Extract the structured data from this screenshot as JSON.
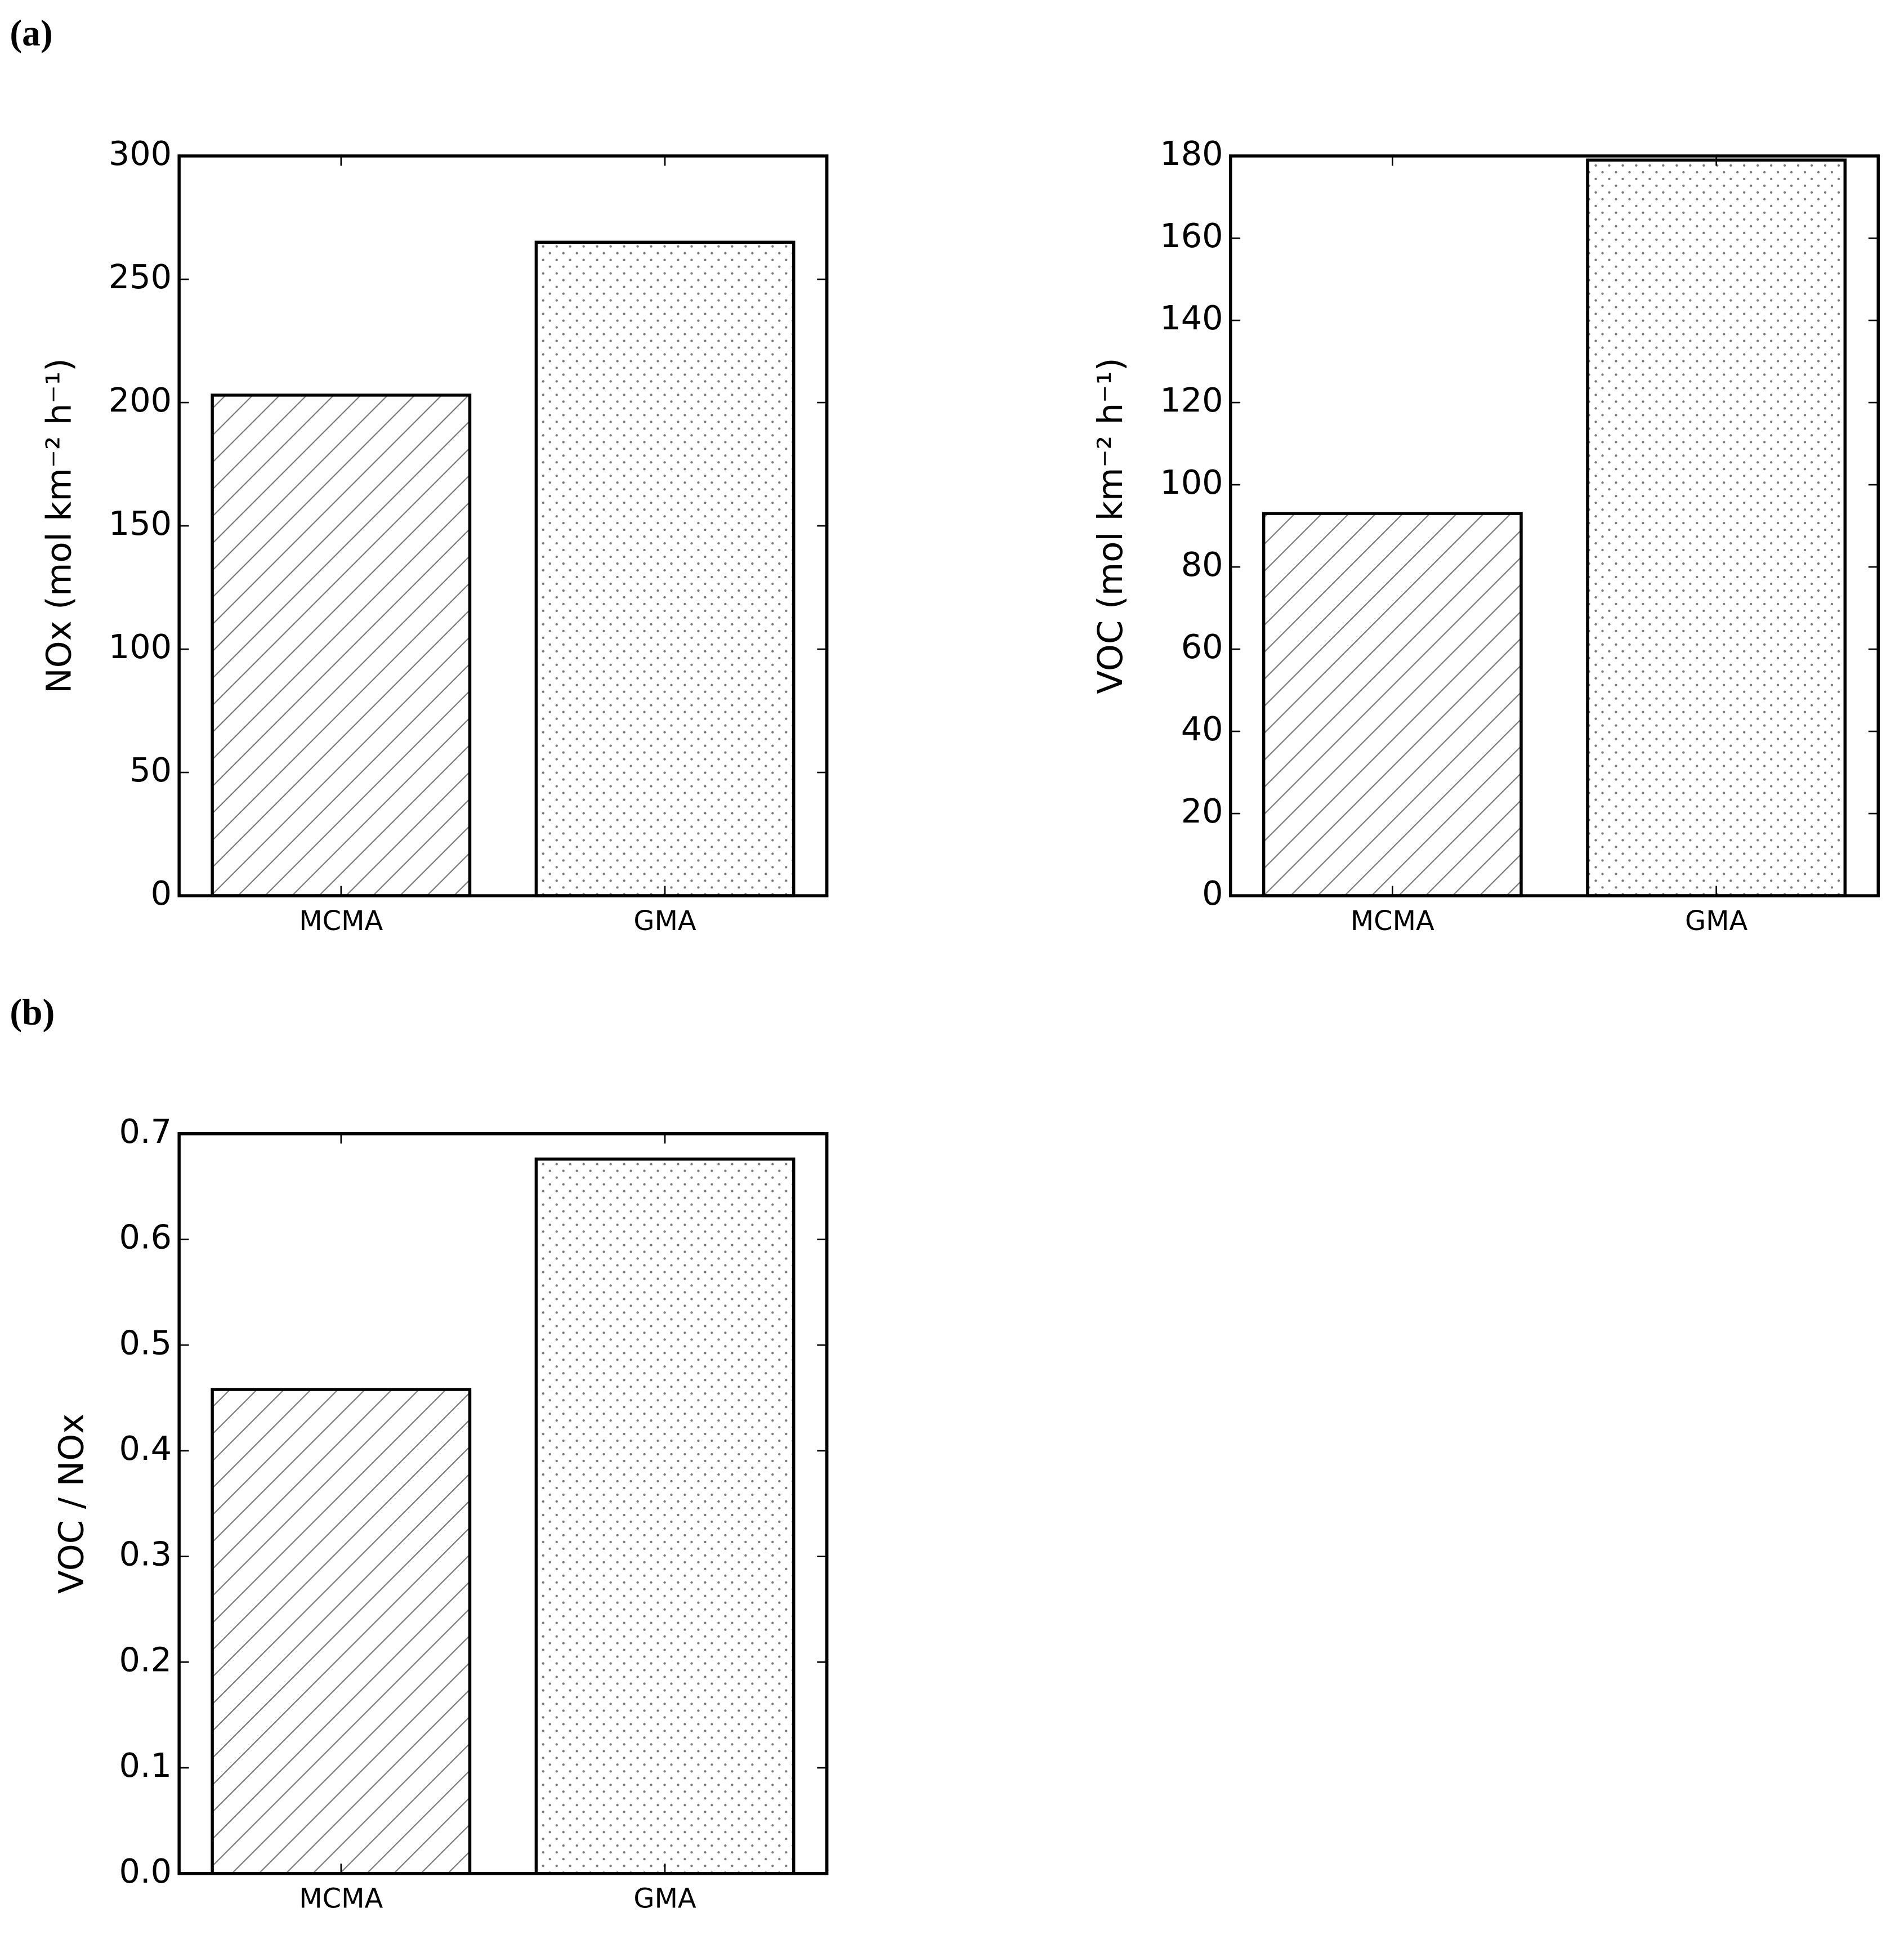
{
  "chart_data": [
    {
      "type": "bar",
      "panel": "(a)",
      "y_label": "NOx (mol km⁻² h⁻¹)",
      "categories": [
        "MCMA",
        "GMA"
      ],
      "values": [
        203,
        265
      ],
      "hatch": [
        "/",
        "."
      ],
      "color": "#ffffff",
      "ylim": [
        0,
        300
      ],
      "yticks": [
        0,
        50,
        100,
        150,
        200,
        250,
        300
      ]
    },
    {
      "type": "bar",
      "y_label": "VOC (mol km⁻² h⁻¹)",
      "categories": [
        "MCMA",
        "GMA"
      ],
      "values": [
        93,
        179
      ],
      "hatch": [
        "/",
        "."
      ],
      "color": "#ffffff",
      "ylim": [
        0,
        180
      ],
      "yticks": [
        0,
        20,
        40,
        60,
        80,
        100,
        120,
        140,
        160,
        180
      ]
    },
    {
      "type": "bar",
      "panel": "(b)",
      "y_label": "VOC / NOx",
      "categories": [
        "MCMA",
        "GMA"
      ],
      "values": [
        0.458,
        0.676
      ],
      "hatch": [
        "/",
        "."
      ],
      "color": "#ffffff",
      "ylim": [
        0,
        0.7
      ],
      "yticks": [
        {
          "value": 0,
          "label": "0.0"
        },
        0.1,
        0.2,
        0.3,
        0.4,
        0.5,
        0.6,
        0.7
      ]
    }
  ]
}
